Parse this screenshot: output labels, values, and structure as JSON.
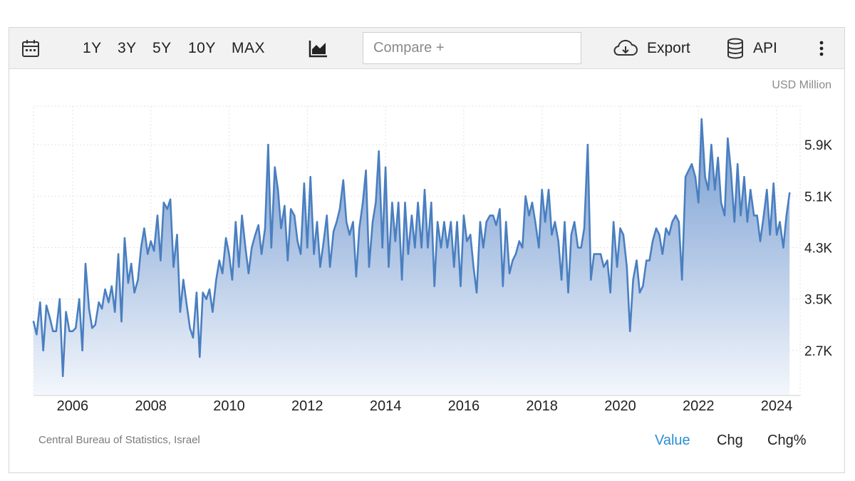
{
  "toolbar": {
    "ranges": [
      "1Y",
      "3Y",
      "5Y",
      "10Y",
      "MAX"
    ],
    "compare_placeholder": "Compare +",
    "export_label": "Export",
    "api_label": "API",
    "icons": [
      "calendar-icon",
      "area-chart-icon",
      "cloud-download-icon",
      "database-icon",
      "more-vertical-icon"
    ]
  },
  "unit_label": "USD Million",
  "source": "Central Bureau of Statistics, Israel",
  "modes": {
    "value": "Value",
    "chg": "Chg",
    "chg_pct": "Chg%",
    "active": "Value"
  },
  "colors": {
    "line": "#4a7fc0",
    "fill_top": "#6d96ce",
    "fill_bottom": "#f4f7fc",
    "active_mode": "#2a8fd1",
    "grid": "#e2e2e2"
  },
  "chart_data": {
    "type": "area",
    "ylabel": "USD Million",
    "xlim": [
      2005.0,
      2024.6
    ],
    "ylim": [
      2000,
      6500
    ],
    "x_ticks": [
      2006,
      2008,
      2010,
      2012,
      2014,
      2016,
      2018,
      2020,
      2022,
      2024
    ],
    "x_tick_labels": [
      "2006",
      "2008",
      "2010",
      "2012",
      "2014",
      "2016",
      "2018",
      "2020",
      "2022",
      "2024"
    ],
    "y_ticks": [
      2700,
      3500,
      4300,
      5100,
      5900
    ],
    "y_tick_labels": [
      "2.7K",
      "3.5K",
      "4.3K",
      "5.1K",
      "5.9K"
    ],
    "grid": true,
    "series": [
      {
        "points": [
          [
            2005.0,
            3150
          ],
          [
            2005.08,
            2950
          ],
          [
            2005.17,
            3450
          ],
          [
            2005.25,
            2700
          ],
          [
            2005.33,
            3400
          ],
          [
            2005.42,
            3200
          ],
          [
            2005.5,
            3000
          ],
          [
            2005.58,
            3000
          ],
          [
            2005.67,
            3500
          ],
          [
            2005.75,
            2300
          ],
          [
            2005.83,
            3300
          ],
          [
            2005.92,
            3000
          ],
          [
            2006.0,
            3000
          ],
          [
            2006.08,
            3050
          ],
          [
            2006.17,
            3500
          ],
          [
            2006.25,
            2700
          ],
          [
            2006.33,
            4050
          ],
          [
            2006.42,
            3350
          ],
          [
            2006.5,
            3050
          ],
          [
            2006.58,
            3100
          ],
          [
            2006.67,
            3450
          ],
          [
            2006.75,
            3350
          ],
          [
            2006.83,
            3650
          ],
          [
            2006.92,
            3450
          ],
          [
            2007.0,
            3700
          ],
          [
            2007.08,
            3300
          ],
          [
            2007.17,
            4200
          ],
          [
            2007.25,
            3150
          ],
          [
            2007.33,
            4450
          ],
          [
            2007.42,
            3750
          ],
          [
            2007.5,
            4050
          ],
          [
            2007.58,
            3600
          ],
          [
            2007.67,
            3800
          ],
          [
            2007.75,
            4300
          ],
          [
            2007.83,
            4600
          ],
          [
            2007.92,
            4200
          ],
          [
            2008.0,
            4400
          ],
          [
            2008.08,
            4250
          ],
          [
            2008.17,
            4800
          ],
          [
            2008.25,
            4100
          ],
          [
            2008.33,
            5000
          ],
          [
            2008.42,
            4900
          ],
          [
            2008.5,
            5050
          ],
          [
            2008.58,
            4000
          ],
          [
            2008.67,
            4500
          ],
          [
            2008.75,
            3300
          ],
          [
            2008.83,
            3800
          ],
          [
            2008.92,
            3400
          ],
          [
            2009.0,
            3050
          ],
          [
            2009.08,
            2900
          ],
          [
            2009.17,
            3600
          ],
          [
            2009.25,
            2600
          ],
          [
            2009.33,
            3600
          ],
          [
            2009.42,
            3500
          ],
          [
            2009.5,
            3650
          ],
          [
            2009.58,
            3300
          ],
          [
            2009.67,
            3800
          ],
          [
            2009.75,
            4100
          ],
          [
            2009.83,
            3900
          ],
          [
            2009.92,
            4450
          ],
          [
            2010.0,
            4200
          ],
          [
            2010.08,
            3800
          ],
          [
            2010.17,
            4700
          ],
          [
            2010.25,
            4000
          ],
          [
            2010.33,
            4800
          ],
          [
            2010.42,
            4300
          ],
          [
            2010.5,
            3900
          ],
          [
            2010.58,
            4300
          ],
          [
            2010.67,
            4500
          ],
          [
            2010.75,
            4650
          ],
          [
            2010.83,
            4200
          ],
          [
            2010.92,
            4600
          ],
          [
            2011.0,
            5900
          ],
          [
            2011.08,
            4300
          ],
          [
            2011.17,
            5550
          ],
          [
            2011.25,
            5200
          ],
          [
            2011.33,
            4600
          ],
          [
            2011.42,
            4950
          ],
          [
            2011.5,
            4100
          ],
          [
            2011.58,
            4900
          ],
          [
            2011.67,
            4800
          ],
          [
            2011.75,
            4400
          ],
          [
            2011.83,
            4200
          ],
          [
            2011.92,
            5300
          ],
          [
            2012.0,
            4300
          ],
          [
            2012.08,
            5400
          ],
          [
            2012.17,
            4200
          ],
          [
            2012.25,
            4700
          ],
          [
            2012.33,
            4000
          ],
          [
            2012.42,
            4400
          ],
          [
            2012.5,
            4800
          ],
          [
            2012.58,
            4000
          ],
          [
            2012.67,
            4550
          ],
          [
            2012.75,
            4700
          ],
          [
            2012.83,
            4900
          ],
          [
            2012.92,
            5350
          ],
          [
            2013.0,
            4700
          ],
          [
            2013.08,
            4500
          ],
          [
            2013.17,
            4700
          ],
          [
            2013.25,
            3850
          ],
          [
            2013.33,
            4600
          ],
          [
            2013.42,
            5000
          ],
          [
            2013.5,
            5500
          ],
          [
            2013.58,
            4000
          ],
          [
            2013.67,
            4700
          ],
          [
            2013.75,
            5000
          ],
          [
            2013.83,
            5800
          ],
          [
            2013.92,
            4300
          ],
          [
            2014.0,
            5550
          ],
          [
            2014.08,
            4000
          ],
          [
            2014.17,
            5000
          ],
          [
            2014.25,
            4400
          ],
          [
            2014.33,
            5000
          ],
          [
            2014.42,
            3800
          ],
          [
            2014.5,
            5000
          ],
          [
            2014.58,
            4200
          ],
          [
            2014.67,
            4800
          ],
          [
            2014.75,
            4300
          ],
          [
            2014.83,
            5000
          ],
          [
            2014.92,
            4300
          ],
          [
            2015.0,
            5200
          ],
          [
            2015.08,
            4300
          ],
          [
            2015.17,
            5000
          ],
          [
            2015.25,
            3700
          ],
          [
            2015.33,
            4700
          ],
          [
            2015.42,
            4300
          ],
          [
            2015.5,
            4700
          ],
          [
            2015.58,
            4300
          ],
          [
            2015.67,
            4700
          ],
          [
            2015.75,
            4000
          ],
          [
            2015.83,
            4700
          ],
          [
            2015.92,
            3700
          ],
          [
            2016.0,
            4800
          ],
          [
            2016.08,
            4400
          ],
          [
            2016.17,
            4500
          ],
          [
            2016.25,
            4000
          ],
          [
            2016.33,
            3600
          ],
          [
            2016.42,
            4700
          ],
          [
            2016.5,
            4300
          ],
          [
            2016.58,
            4700
          ],
          [
            2016.67,
            4800
          ],
          [
            2016.75,
            4800
          ],
          [
            2016.83,
            4650
          ],
          [
            2016.92,
            4900
          ],
          [
            2017.0,
            3700
          ],
          [
            2017.08,
            4700
          ],
          [
            2017.17,
            3900
          ],
          [
            2017.25,
            4100
          ],
          [
            2017.33,
            4200
          ],
          [
            2017.42,
            4400
          ],
          [
            2017.5,
            4300
          ],
          [
            2017.58,
            5100
          ],
          [
            2017.67,
            4800
          ],
          [
            2017.75,
            5000
          ],
          [
            2017.83,
            4700
          ],
          [
            2017.92,
            4300
          ],
          [
            2018.0,
            5200
          ],
          [
            2018.08,
            4700
          ],
          [
            2018.17,
            5200
          ],
          [
            2018.25,
            4500
          ],
          [
            2018.33,
            4700
          ],
          [
            2018.42,
            4400
          ],
          [
            2018.5,
            3800
          ],
          [
            2018.58,
            4700
          ],
          [
            2018.67,
            3600
          ],
          [
            2018.75,
            4500
          ],
          [
            2018.83,
            4700
          ],
          [
            2018.92,
            4300
          ],
          [
            2019.0,
            4300
          ],
          [
            2019.08,
            4600
          ],
          [
            2019.17,
            5900
          ],
          [
            2019.25,
            3800
          ],
          [
            2019.33,
            4200
          ],
          [
            2019.42,
            4200
          ],
          [
            2019.5,
            4200
          ],
          [
            2019.58,
            4000
          ],
          [
            2019.67,
            4100
          ],
          [
            2019.75,
            3600
          ],
          [
            2019.83,
            4700
          ],
          [
            2019.92,
            4000
          ],
          [
            2020.0,
            4600
          ],
          [
            2020.08,
            4500
          ],
          [
            2020.17,
            4000
          ],
          [
            2020.25,
            3000
          ],
          [
            2020.33,
            3800
          ],
          [
            2020.42,
            4100
          ],
          [
            2020.5,
            3600
          ],
          [
            2020.58,
            3700
          ],
          [
            2020.67,
            4100
          ],
          [
            2020.75,
            4100
          ],
          [
            2020.83,
            4400
          ],
          [
            2020.92,
            4600
          ],
          [
            2021.0,
            4500
          ],
          [
            2021.08,
            4200
          ],
          [
            2021.17,
            4600
          ],
          [
            2021.25,
            4500
          ],
          [
            2021.33,
            4700
          ],
          [
            2021.42,
            4800
          ],
          [
            2021.5,
            4700
          ],
          [
            2021.58,
            3800
          ],
          [
            2021.67,
            5400
          ],
          [
            2021.75,
            5500
          ],
          [
            2021.83,
            5600
          ],
          [
            2021.92,
            5400
          ],
          [
            2022.0,
            5000
          ],
          [
            2022.08,
            6300
          ],
          [
            2022.17,
            5400
          ],
          [
            2022.25,
            5200
          ],
          [
            2022.33,
            5900
          ],
          [
            2022.42,
            5200
          ],
          [
            2022.5,
            5700
          ],
          [
            2022.58,
            5000
          ],
          [
            2022.67,
            4800
          ],
          [
            2022.75,
            6000
          ],
          [
            2022.83,
            5500
          ],
          [
            2022.92,
            4700
          ],
          [
            2023.0,
            5600
          ],
          [
            2023.08,
            4800
          ],
          [
            2023.17,
            5400
          ],
          [
            2023.25,
            4700
          ],
          [
            2023.33,
            5200
          ],
          [
            2023.42,
            4800
          ],
          [
            2023.5,
            4800
          ],
          [
            2023.58,
            4400
          ],
          [
            2023.67,
            4800
          ],
          [
            2023.75,
            5200
          ],
          [
            2023.83,
            4500
          ],
          [
            2023.92,
            5300
          ],
          [
            2024.0,
            4500
          ],
          [
            2024.08,
            4700
          ],
          [
            2024.17,
            4300
          ],
          [
            2024.25,
            4800
          ],
          [
            2024.33,
            5150
          ]
        ]
      }
    ]
  }
}
